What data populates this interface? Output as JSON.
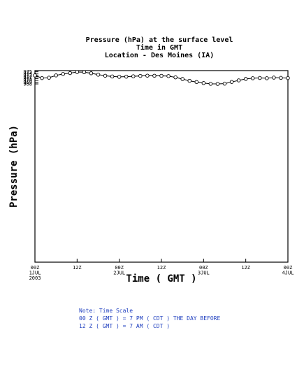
{
  "chart_data": {
    "type": "line",
    "title": [
      "Pressure (hPa) at the surface level",
      "Time in GMT",
      "Location - Des Moines (IA)"
    ],
    "xlabel": "Time ( GMT )",
    "ylabel": "Pressure (hPa)",
    "x_range": [
      0,
      72
    ],
    "ylim": [
      867.5,
      975.5
    ],
    "y_ticks": [
      968,
      969,
      970,
      971,
      972,
      973,
      974,
      975
    ],
    "x_ticks": [
      {
        "x": 0,
        "lines": [
          "00Z",
          "1JUL",
          "2003"
        ]
      },
      {
        "x": 12,
        "lines": [
          "12Z"
        ]
      },
      {
        "x": 24,
        "lines": [
          "00Z",
          "2JUL"
        ]
      },
      {
        "x": 36,
        "lines": [
          "12Z"
        ]
      },
      {
        "x": 48,
        "lines": [
          "00Z",
          "3JUL"
        ]
      },
      {
        "x": 60,
        "lines": [
          "12Z"
        ]
      },
      {
        "x": 72,
        "lines": [
          "00Z",
          "4JUL"
        ]
      }
    ],
    "grid": false,
    "series": [
      {
        "x": [
          0,
          2,
          4,
          6,
          8,
          10,
          12,
          14,
          16,
          18,
          20,
          22,
          24,
          26,
          28,
          30,
          32,
          34,
          36,
          38,
          40,
          42,
          44,
          46,
          48,
          50,
          52,
          54,
          56,
          58,
          60,
          62,
          64,
          66,
          68,
          70,
          72
        ],
        "y": [
          972.8,
          971.3,
          971.5,
          972.8,
          973.6,
          974.1,
          974.7,
          974.6,
          974.0,
          973.2,
          972.6,
          972.2,
          972.0,
          972.1,
          972.3,
          972.5,
          972.65,
          972.6,
          972.55,
          972.4,
          971.7,
          970.75,
          969.75,
          969.05,
          968.5,
          968.05,
          968.0,
          968.15,
          969.1,
          970.0,
          970.8,
          971.2,
          971.35,
          971.2,
          971.55,
          971.4,
          971.3
        ]
      }
    ]
  },
  "note": {
    "lines": [
      "Note: Time Scale",
      "00 Z ( GMT ) = 7 PM ( CDT ) THE DAY BEFORE",
      "12 Z ( GMT ) = 7 AM ( CDT )"
    ]
  },
  "colors": {
    "line": "#000000",
    "marker_fill": "#ffffff",
    "note": "#1f3fbf"
  }
}
